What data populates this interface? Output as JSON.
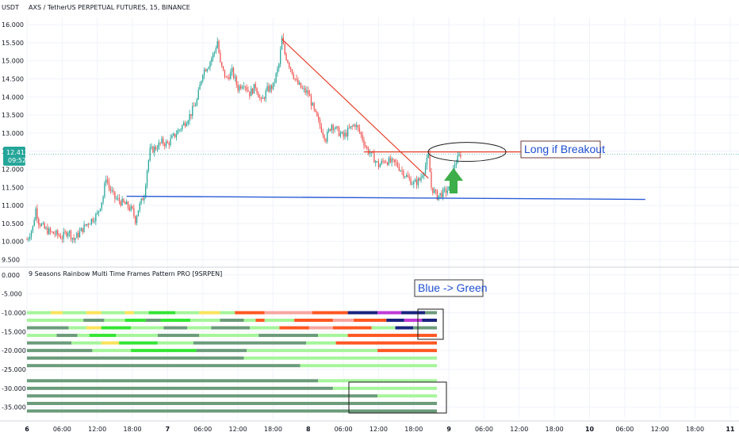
{
  "chart_data": [
    {
      "type": "candlestick",
      "title": "AXS / TetherUS PERPETUAL FUTURES, 15, BINANCE",
      "y_unit": "USDT",
      "y_axis_labels": [
        "16.000",
        "15.500",
        "15.000",
        "14.500",
        "14.000",
        "13.500",
        "13.000",
        "12.500",
        "12.000",
        "11.500",
        "11.000",
        "10.500",
        "10.000",
        "9.500"
      ],
      "ylim": [
        9.4,
        16.2
      ],
      "x_axis_labels": [
        "6",
        "06:00",
        "12:00",
        "18:00",
        "7",
        "06:00",
        "12:00",
        "18:00",
        "8",
        "06:00",
        "12:00",
        "18:00",
        "9",
        "06:00",
        "12:00",
        "18:00",
        "10",
        "06:00",
        "12:00",
        "18:00",
        "11"
      ],
      "x_hours": [
        0,
        6,
        12,
        18,
        24,
        30,
        36,
        42,
        48,
        54,
        60,
        66,
        72,
        78,
        84,
        90,
        96,
        102,
        108,
        114,
        120
      ],
      "xlim_hours": [
        0,
        121.5
      ],
      "price_path": [
        [
          0,
          10.05
        ],
        [
          1,
          10.4
        ],
        [
          1.5,
          10.9
        ],
        [
          2,
          10.55
        ],
        [
          3,
          10.35
        ],
        [
          4,
          10.25
        ],
        [
          5,
          10.2
        ],
        [
          6,
          10.12
        ],
        [
          7,
          10.3
        ],
        [
          8,
          10.05
        ],
        [
          9,
          10.25
        ],
        [
          10,
          10.45
        ],
        [
          11,
          10.6
        ],
        [
          12,
          10.75
        ],
        [
          13,
          11.25
        ],
        [
          13.5,
          11.8
        ],
        [
          14,
          11.5
        ],
        [
          15,
          11.2
        ],
        [
          16,
          11.1
        ],
        [
          17,
          11.0
        ],
        [
          18,
          10.85
        ],
        [
          18.5,
          10.6
        ],
        [
          19,
          10.9
        ],
        [
          20,
          11.3
        ],
        [
          20.5,
          12.0
        ],
        [
          21,
          12.5
        ],
        [
          22,
          12.6
        ],
        [
          23,
          12.75
        ],
        [
          24,
          12.7
        ],
        [
          25,
          12.9
        ],
        [
          26,
          13.1
        ],
        [
          27,
          13.3
        ],
        [
          28,
          13.55
        ],
        [
          29,
          13.9
        ],
        [
          30,
          14.7
        ],
        [
          31,
          14.9
        ],
        [
          32,
          15.25
        ],
        [
          32.5,
          15.55
        ],
        [
          33,
          14.9
        ],
        [
          34,
          14.5
        ],
        [
          35,
          14.7
        ],
        [
          36,
          14.25
        ],
        [
          37,
          14.4
        ],
        [
          38,
          14.1
        ],
        [
          39,
          14.3
        ],
        [
          40,
          13.85
        ],
        [
          41,
          14.2
        ],
        [
          42,
          14.3
        ],
        [
          43,
          14.9
        ],
        [
          43.5,
          15.6
        ],
        [
          44,
          15.2
        ],
        [
          45,
          14.8
        ],
        [
          46,
          14.4
        ],
        [
          47,
          14.2
        ],
        [
          48,
          14.1
        ],
        [
          49,
          13.6
        ],
        [
          50,
          13.2
        ],
        [
          51,
          12.85
        ],
        [
          52,
          13.25
        ],
        [
          53,
          13.05
        ],
        [
          54,
          12.9
        ],
        [
          55,
          13.1
        ],
        [
          56,
          13.25
        ],
        [
          57,
          12.95
        ],
        [
          58,
          12.55
        ],
        [
          59,
          12.35
        ],
        [
          60,
          12.1
        ],
        [
          61,
          12.25
        ],
        [
          62,
          12.2
        ],
        [
          63,
          12.15
        ],
        [
          64,
          11.95
        ],
        [
          65,
          11.75
        ],
        [
          66,
          11.6
        ],
        [
          67,
          11.7
        ],
        [
          68,
          12.1
        ],
        [
          68.5,
          12.35
        ],
        [
          69,
          11.5
        ],
        [
          70,
          11.25
        ],
        [
          71,
          11.35
        ],
        [
          72,
          11.45
        ],
        [
          72.5,
          11.8
        ],
        [
          73,
          12.15
        ],
        [
          74,
          12.42
        ]
      ],
      "candle_interval_hours": 0.25,
      "last_price": "12.412",
      "countdown": "09:52",
      "horizontal_line_price": 11.22,
      "resistance_line_price": 12.48,
      "trendline": [
        [
          43.5,
          15.6
        ],
        [
          68.5,
          11.75
        ]
      ],
      "annotation": "Long if Breakout",
      "arrow": "up"
    },
    {
      "type": "heatmap",
      "title": "9 Seasons Rainbow Multi Time Frames Pattern PRO [9SRPEN]",
      "y_axis_labels": [
        "0.000",
        "-5.000",
        "-10.000",
        "-15.000",
        "-20.000",
        "-25.000",
        "-30.000",
        "-35.000"
      ],
      "ylim": [
        -38,
        1
      ],
      "annotation": "Blue -> Green",
      "row_levels": [
        -10,
        -12,
        -14,
        -16,
        -18,
        -20,
        -22,
        -24,
        -28,
        -30,
        -32,
        -34,
        -36
      ],
      "rows": [
        [
          [
            0,
            8,
            "#a5f59a"
          ],
          [
            8,
            12,
            "#fbe35b"
          ],
          [
            12,
            20,
            "#a5f59a"
          ],
          [
            20,
            25,
            "#fbe35b"
          ],
          [
            25,
            33,
            "#a5f59a"
          ],
          [
            33,
            36,
            "#fbe35b"
          ],
          [
            36,
            41,
            "#a5f59a"
          ],
          [
            41,
            50,
            "#34e534"
          ],
          [
            50,
            58,
            "#a5f59a"
          ],
          [
            58,
            65,
            "#fbe35b"
          ],
          [
            65,
            70,
            "#a5f59a"
          ],
          [
            70,
            80,
            "#ff5722"
          ],
          [
            80,
            96,
            "#f7a6a0"
          ],
          [
            96,
            108,
            "#ff5722"
          ],
          [
            108,
            118,
            "#1a237e"
          ],
          [
            118,
            126,
            "#c03ad8"
          ],
          [
            126,
            134,
            "#1a237e"
          ],
          [
            134,
            138,
            "#6b9b7a"
          ]
        ],
        [
          [
            0,
            19,
            "#a5f59a"
          ],
          [
            19,
            26,
            "#6b9b7a"
          ],
          [
            26,
            33,
            "#a5f59a"
          ],
          [
            33,
            40,
            "#34e534"
          ],
          [
            40,
            45,
            "#6b9b7a"
          ],
          [
            45,
            55,
            "#34e534"
          ],
          [
            55,
            65,
            "#a5f59a"
          ],
          [
            65,
            73,
            "#6b9b7a"
          ],
          [
            73,
            77,
            "#a5f59a"
          ],
          [
            77,
            80,
            "#ff5722"
          ],
          [
            80,
            90,
            "#a5f59a"
          ],
          [
            90,
            103,
            "#ff5722"
          ],
          [
            103,
            110,
            "#f7a6a0"
          ],
          [
            110,
            121,
            "#ff5722"
          ],
          [
            121,
            127,
            "#1a237e"
          ],
          [
            127,
            133,
            "#c03ad8"
          ],
          [
            133,
            138,
            "#1a237e"
          ]
        ],
        [
          [
            0,
            14,
            "#6b9b7a"
          ],
          [
            14,
            20,
            "#a5f59a"
          ],
          [
            20,
            25,
            "#fbe35b"
          ],
          [
            25,
            35,
            "#34e534"
          ],
          [
            35,
            46,
            "#a5f59a"
          ],
          [
            46,
            54,
            "#6b9b7a"
          ],
          [
            54,
            62,
            "#a5f59a"
          ],
          [
            62,
            75,
            "#6b9b7a"
          ],
          [
            75,
            85,
            "#a5f59a"
          ],
          [
            85,
            95,
            "#ff5722"
          ],
          [
            95,
            103,
            "#f7a6a0"
          ],
          [
            103,
            116,
            "#ff5722"
          ],
          [
            116,
            124,
            "#a5f59a"
          ],
          [
            124,
            130,
            "#1a237e"
          ],
          [
            130,
            138,
            "#6b9b7a"
          ]
        ],
        [
          [
            0,
            10,
            "#a5f59a"
          ],
          [
            10,
            17,
            "#6b9b7a"
          ],
          [
            17,
            21,
            "#a5f59a"
          ],
          [
            21,
            30,
            "#34e534"
          ],
          [
            30,
            44,
            "#a5f59a"
          ],
          [
            44,
            58,
            "#6b9b7a"
          ],
          [
            58,
            78,
            "#a5f59a"
          ],
          [
            78,
            98,
            "#6b9b7a"
          ],
          [
            98,
            108,
            "#a5f59a"
          ],
          [
            108,
            138,
            "#ff5722"
          ]
        ],
        [
          [
            0,
            15,
            "#6b9b7a"
          ],
          [
            15,
            25,
            "#a5f59a"
          ],
          [
            25,
            31,
            "#fbe35b"
          ],
          [
            31,
            44,
            "#34e534"
          ],
          [
            44,
            56,
            "#a5f59a"
          ],
          [
            56,
            94,
            "#6b9b7a"
          ],
          [
            94,
            104,
            "#a5f59a"
          ],
          [
            104,
            138,
            "#ff5722"
          ]
        ],
        [
          [
            0,
            22,
            "#6b9b7a"
          ],
          [
            22,
            35,
            "#a5f59a"
          ],
          [
            35,
            57,
            "#34e534"
          ],
          [
            57,
            74,
            "#6b9b7a"
          ],
          [
            74,
            118,
            "#a5f59a"
          ],
          [
            118,
            138,
            "#ff5722"
          ]
        ],
        [
          [
            0,
            73,
            "#6b9b7a"
          ],
          [
            73,
            138,
            "#a5f59a"
          ]
        ],
        [
          [
            0,
            92,
            "#6b9b7a"
          ],
          [
            92,
            138,
            "#a5f59a"
          ]
        ],
        [
          [
            0,
            98,
            "#6b9b7a"
          ],
          [
            98,
            138,
            "#a5f59a"
          ]
        ],
        [
          [
            0,
            103,
            "#6b9b7a"
          ],
          [
            103,
            138,
            "#a5f59a"
          ]
        ],
        [
          [
            0,
            118,
            "#6b9b7a"
          ],
          [
            118,
            138,
            "#a5f59a"
          ]
        ],
        [
          [
            0,
            138,
            "#6b9b7a"
          ]
        ],
        [
          [
            0,
            138,
            "#6b9b7a"
          ]
        ]
      ]
    }
  ],
  "colors": {
    "up": "#26a69a",
    "down": "#ef5350",
    "blue_line": "#2b5cd6",
    "red_line": "#e8402a",
    "arrow": "#3dae49",
    "price_badge": "#26a69a"
  }
}
